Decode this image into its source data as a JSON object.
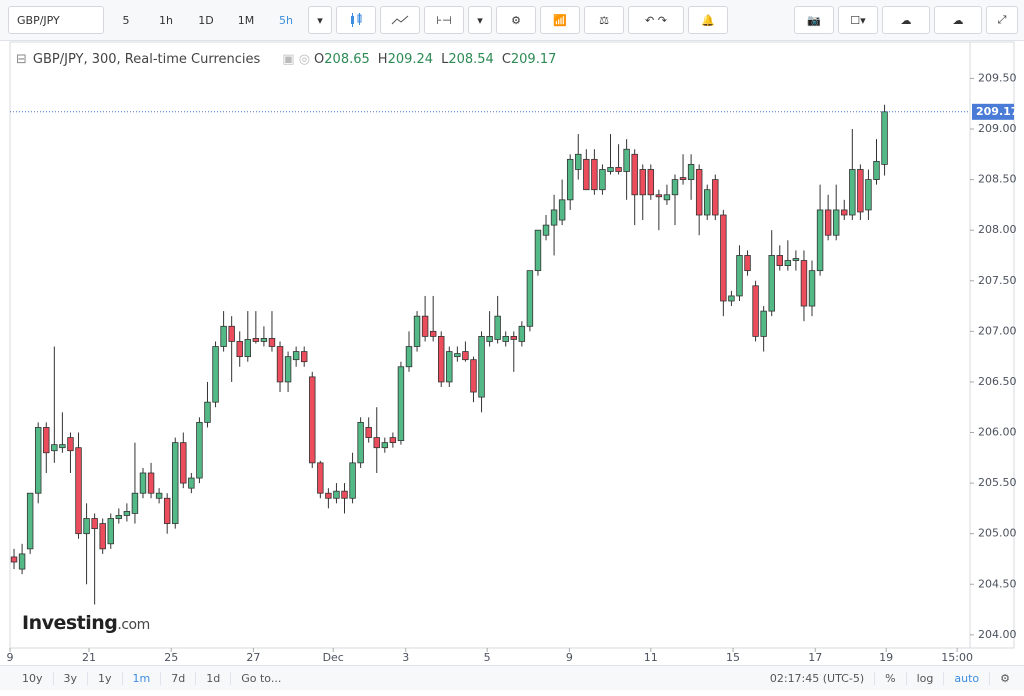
{
  "ui": {
    "symbol": "GBP/JPY",
    "intervals": [
      "5",
      "1h",
      "1D",
      "1M",
      "5h"
    ],
    "ranges": [
      "10y",
      "3y",
      "1y",
      "1m",
      "7d",
      "1d"
    ],
    "goto": "Go to...",
    "clock": "02:17:45 (UTC-5)",
    "scale_buttons": [
      "%",
      "log",
      "auto"
    ],
    "brand": "Investing",
    "brand_suffix": ".com"
  },
  "chart_data": {
    "type": "candlestick",
    "title": "GBP/JPY, 300, Real-time Currencies",
    "ohlc_labels": [
      "O",
      "H",
      "L",
      "C"
    ],
    "up_color": "#53b987",
    "down_color": "#eb4d5c",
    "open": [
      204.77,
      204.65,
      204.85,
      205.4,
      206.05,
      205.82,
      205.85,
      205.95,
      205.85,
      205.0,
      205.15,
      205.1,
      204.9,
      205.15,
      205.18,
      205.2,
      205.4,
      205.6,
      205.35,
      205.35,
      205.1,
      205.9,
      205.45,
      205.55,
      206.1,
      206.3,
      206.85,
      207.05,
      206.9,
      206.75,
      206.93,
      206.9,
      206.93,
      206.85,
      206.5,
      206.72,
      206.8,
      206.55,
      205.7,
      205.4,
      205.35,
      205.42,
      205.35,
      205.7,
      206.05,
      205.95,
      205.85,
      205.95,
      205.92,
      206.65,
      206.85,
      207.15,
      207.0,
      206.95,
      206.5,
      206.75,
      206.8,
      206.72,
      206.35,
      206.9,
      206.92,
      206.9,
      206.95,
      206.9,
      207.05,
      207.6,
      207.95,
      208.05,
      208.1,
      208.3,
      208.6,
      208.7,
      208.7,
      208.4,
      208.58,
      208.62,
      208.58,
      208.75,
      208.6,
      208.6,
      208.35,
      208.3,
      208.35,
      208.52,
      208.5,
      208.6,
      208.15,
      208.5,
      208.15,
      207.3,
      207.35,
      207.75,
      207.45,
      206.95,
      207.2,
      207.75,
      207.65,
      207.7,
      207.7,
      207.25,
      207.6,
      208.2,
      207.95,
      208.2,
      208.15,
      208.6,
      208.2,
      208.5,
      208.65
    ],
    "high": [
      204.85,
      204.9,
      205.4,
      206.1,
      206.1,
      206.85,
      206.2,
      206.0,
      206.0,
      205.3,
      205.2,
      205.15,
      205.2,
      205.25,
      205.3,
      205.9,
      205.65,
      205.7,
      205.45,
      205.4,
      205.95,
      206.0,
      205.6,
      206.15,
      206.5,
      206.9,
      207.2,
      207.15,
      207.0,
      207.2,
      207.2,
      207.05,
      207.2,
      206.9,
      206.8,
      206.85,
      206.85,
      206.6,
      205.72,
      205.45,
      205.5,
      205.5,
      205.8,
      206.15,
      206.15,
      206.25,
      205.95,
      206.0,
      206.7,
      207.0,
      207.2,
      207.35,
      207.35,
      207.0,
      206.85,
      206.85,
      206.9,
      206.75,
      207.0,
      207.2,
      207.35,
      207.0,
      207.0,
      207.1,
      207.6,
      208.0,
      208.15,
      208.35,
      208.5,
      208.75,
      208.95,
      208.8,
      208.8,
      208.65,
      208.95,
      208.85,
      208.9,
      208.8,
      208.65,
      208.65,
      208.4,
      208.45,
      208.55,
      208.75,
      208.75,
      208.65,
      208.45,
      208.55,
      208.2,
      207.4,
      207.85,
      207.8,
      207.5,
      207.25,
      208.0,
      207.85,
      207.9,
      207.8,
      207.8,
      207.7,
      208.45,
      208.35,
      208.45,
      208.3,
      209.0,
      208.65,
      208.6,
      208.9,
      209.24
    ],
    "low": [
      204.65,
      204.6,
      204.8,
      205.3,
      205.6,
      205.7,
      205.8,
      205.6,
      204.95,
      204.5,
      204.3,
      204.8,
      204.85,
      205.1,
      205.12,
      205.1,
      205.35,
      205.35,
      205.3,
      205.0,
      205.05,
      205.45,
      205.4,
      205.5,
      206.05,
      206.25,
      206.8,
      206.5,
      206.65,
      206.7,
      206.88,
      206.85,
      206.8,
      206.4,
      206.4,
      206.65,
      206.65,
      205.65,
      205.35,
      205.25,
      205.3,
      205.2,
      205.3,
      205.65,
      205.9,
      205.6,
      205.8,
      205.85,
      205.88,
      206.6,
      206.8,
      206.9,
      206.9,
      206.45,
      206.45,
      206.7,
      206.7,
      206.3,
      206.2,
      206.85,
      206.88,
      206.85,
      206.6,
      206.85,
      207.0,
      207.55,
      207.9,
      207.75,
      208.05,
      208.2,
      208.5,
      208.4,
      208.35,
      208.35,
      208.55,
      208.55,
      208.3,
      208.05,
      208.1,
      208.3,
      208.0,
      208.25,
      208.05,
      208.45,
      208.3,
      207.95,
      208.1,
      208.1,
      207.15,
      207.25,
      207.3,
      207.55,
      206.9,
      206.8,
      207.15,
      207.6,
      207.6,
      207.6,
      207.1,
      207.15,
      207.55,
      207.9,
      207.9,
      208.1,
      208.1,
      208.1,
      208.1,
      208.45,
      208.54
    ],
    "close": [
      204.72,
      204.8,
      205.4,
      206.05,
      205.8,
      205.88,
      205.88,
      205.82,
      205.0,
      205.15,
      205.05,
      204.85,
      205.15,
      205.18,
      205.22,
      205.4,
      205.6,
      205.4,
      205.4,
      205.1,
      205.9,
      205.5,
      205.55,
      206.1,
      206.3,
      206.85,
      207.05,
      206.9,
      206.75,
      206.92,
      206.9,
      206.93,
      206.85,
      206.5,
      206.75,
      206.8,
      206.7,
      205.7,
      205.4,
      205.35,
      205.42,
      205.35,
      205.7,
      206.1,
      205.95,
      205.85,
      205.9,
      205.9,
      206.65,
      206.85,
      207.15,
      206.95,
      206.95,
      206.5,
      206.8,
      206.78,
      206.72,
      206.4,
      206.95,
      206.95,
      207.15,
      206.95,
      206.92,
      207.05,
      207.6,
      208.0,
      208.05,
      208.2,
      208.3,
      208.7,
      208.75,
      208.4,
      208.4,
      208.6,
      208.62,
      208.58,
      208.8,
      208.35,
      208.35,
      208.35,
      208.33,
      208.35,
      208.5,
      208.5,
      208.65,
      208.15,
      208.4,
      208.15,
      207.3,
      207.35,
      207.75,
      207.6,
      206.95,
      207.2,
      207.75,
      207.65,
      207.7,
      207.72,
      207.25,
      207.6,
      208.2,
      207.95,
      208.2,
      208.15,
      208.6,
      208.18,
      208.5,
      208.68,
      209.17
    ],
    "xlim": [
      -0.5,
      118.6
    ],
    "xticks": [
      {
        "value": -0.5,
        "label": "9"
      },
      {
        "value": 9.3,
        "label": "21"
      },
      {
        "value": 19.5,
        "label": "25"
      },
      {
        "value": 29.7,
        "label": "27"
      },
      {
        "value": 39.6,
        "label": "Dec"
      },
      {
        "value": 48.6,
        "label": "3"
      },
      {
        "value": 58.7,
        "label": "5"
      },
      {
        "value": 68.9,
        "label": "9"
      },
      {
        "value": 79.0,
        "label": "11"
      },
      {
        "value": 89.2,
        "label": "15"
      },
      {
        "value": 99.4,
        "label": "17"
      },
      {
        "value": 108.2,
        "label": "19"
      },
      {
        "value": 117.0,
        "label": "15:00"
      }
    ],
    "ylim": [
      203.87,
      209.86
    ],
    "yticks": [
      {
        "value": 204,
        "label": "204.00"
      },
      {
        "value": 204.5,
        "label": "204.50"
      },
      {
        "value": 205,
        "label": "205.00"
      },
      {
        "value": 205.5,
        "label": "205.50"
      },
      {
        "value": 206,
        "label": "206.00"
      },
      {
        "value": 206.5,
        "label": "206.50"
      },
      {
        "value": 207,
        "label": "207.00"
      },
      {
        "value": 207.5,
        "label": "207.50"
      },
      {
        "value": 208,
        "label": "208.00"
      },
      {
        "value": 208.5,
        "label": "208.50"
      },
      {
        "value": 209,
        "label": "209.00"
      },
      {
        "value": 209.5,
        "label": "209.50"
      }
    ],
    "grid": false,
    "last_price_line": true,
    "last_price_color": "#4a7bd6"
  }
}
